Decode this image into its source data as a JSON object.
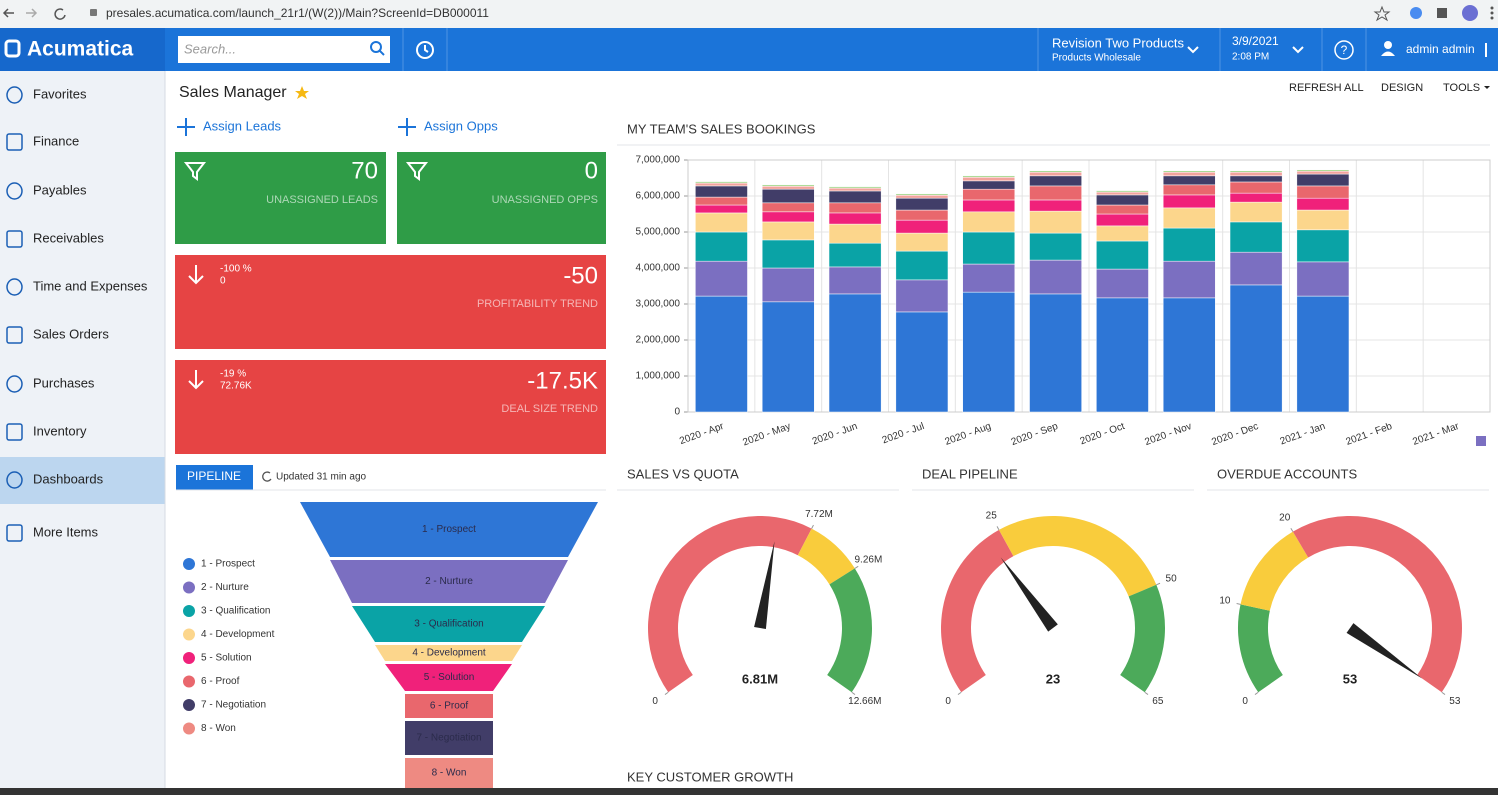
{
  "browser": {
    "url": "presales.acumatica.com/launch_21r1/(W(2))/Main?ScreenId=DB000011"
  },
  "header": {
    "logo": "Acumatica",
    "search_placeholder": "Search...",
    "company": "Revision Two Products",
    "branch": "Products Wholesale",
    "date": "3/9/2021",
    "time": "2:08 PM",
    "help": "?",
    "user": "admin admin"
  },
  "sidebar": {
    "items": [
      "Favorites",
      "Finance",
      "Payables",
      "Receivables",
      "Time and Expenses",
      "Sales Orders",
      "Purchases",
      "Inventory",
      "Dashboards",
      "More Items"
    ],
    "selected": 8
  },
  "page": {
    "title": "Sales Manager",
    "actions": [
      "REFRESH ALL",
      "DESIGN",
      "TOOLS"
    ]
  },
  "quick_actions": [
    "Assign Leads",
    "Assign Opps"
  ],
  "tiles": [
    {
      "value": 70,
      "label": "UNASSIGNED LEADS",
      "color": "#2f9c47"
    },
    {
      "value": 0,
      "label": "UNASSIGNED OPPS",
      "color": "#2f9c47"
    },
    {
      "percent": "-100 %",
      "sub": 0,
      "value": -50,
      "label": "PROFITABILITY TREND",
      "color": "#e64444"
    },
    {
      "percent": "-19 %",
      "sub": "72.76K",
      "value": "-17.5K",
      "label": "DEAL SIZE TREND",
      "color": "#e64444"
    }
  ],
  "pipeline": {
    "tab": "PIPELINE",
    "updated": "Updated 31 min ago",
    "stages": [
      {
        "name": "1 - Prospect",
        "color": "#2e76d6"
      },
      {
        "name": "2 - Nurture",
        "color": "#7b6fc1"
      },
      {
        "name": "3 - Qualification",
        "color": "#0aa3a6"
      },
      {
        "name": "4 - Development",
        "color": "#fcd68c"
      },
      {
        "name": "5 - Solution",
        "color": "#f0217a"
      },
      {
        "name": "6 - Proof",
        "color": "#e9676d"
      },
      {
        "name": "7 - Negotiation",
        "color": "#413d68"
      },
      {
        "name": "8 - Won",
        "color": "#ee8a82"
      }
    ]
  },
  "chart_data": [
    {
      "type": "bar",
      "stacked": true,
      "grid": true,
      "title": "MY TEAM'S SALES BOOKINGS",
      "categories": [
        "2020 - Apr",
        "2020 - May",
        "2020 - Jun",
        "2020 - Jul",
        "2020 - Aug",
        "2020 - Sep",
        "2020 - Oct",
        "2020 - Nov",
        "2020 - Dec",
        "2021 - Jan",
        "2021 - Feb",
        "2021 - Mar"
      ],
      "ylim": [
        0,
        7000000
      ],
      "yticks": [
        0,
        {
          "value": 1000000,
          "label": "1,000,000"
        },
        {
          "value": 2000000,
          "label": "2,000,000"
        },
        {
          "value": 3000000,
          "label": "3,000,000"
        },
        {
          "value": 4000000,
          "label": "4,000,000"
        },
        {
          "value": 5000000,
          "label": "5,000,000"
        },
        {
          "value": 6000000,
          "label": "6,000,000"
        },
        {
          "value": 7000000,
          "label": "7,000,000"
        }
      ],
      "series": [
        {
          "color": "#2e76d6",
          "values": [
            3220000,
            3060000,
            3280000,
            2780000,
            3330000,
            3280000,
            3170000,
            3170000,
            3530000,
            3220000,
            null,
            null
          ]
        },
        {
          "color": "#7b6fc1",
          "values": [
            970000,
            940000,
            750000,
            890000,
            780000,
            940000,
            800000,
            1020000,
            910000,
            950000,
            null,
            null
          ]
        },
        {
          "color": "#0aa3a6",
          "values": [
            810000,
            780000,
            660000,
            800000,
            890000,
            750000,
            780000,
            920000,
            840000,
            890000,
            null,
            null
          ]
        },
        {
          "color": "#fcd68c",
          "values": [
            530000,
            500000,
            530000,
            500000,
            560000,
            610000,
            420000,
            560000,
            550000,
            550000,
            null,
            null
          ]
        },
        {
          "color": "#f0217a",
          "values": [
            220000,
            280000,
            310000,
            360000,
            330000,
            310000,
            330000,
            360000,
            250000,
            330000,
            null,
            null
          ]
        },
        {
          "color": "#e9676d",
          "values": [
            220000,
            250000,
            280000,
            280000,
            300000,
            390000,
            250000,
            280000,
            310000,
            340000,
            null,
            null
          ]
        },
        {
          "color": "#413d68",
          "values": [
            310000,
            380000,
            330000,
            330000,
            230000,
            280000,
            280000,
            250000,
            170000,
            330000,
            null,
            null
          ]
        },
        {
          "color": "#f3a39d",
          "values": [
            80000,
            80000,
            80000,
            80000,
            100000,
            100000,
            80000,
            100000,
            100000,
            80000,
            null,
            null
          ]
        },
        {
          "color": "#a6d88f",
          "values": [
            40000,
            40000,
            40000,
            40000,
            40000,
            40000,
            40000,
            40000,
            40000,
            40000,
            null,
            null
          ]
        }
      ]
    },
    {
      "type": "gauge",
      "title": "SALES VS QUOTA",
      "min": 0,
      "max": 12660000,
      "value": 6810000,
      "value_label": "6.81M",
      "ticks": [
        0,
        {
          "value": 7720000,
          "label": "7.72M"
        },
        {
          "value": 9260000,
          "label": "9.26M"
        },
        {
          "value": 12660000,
          "label": "12.66M"
        }
      ],
      "bands": [
        {
          "from": 0,
          "to": 7720000,
          "color": "#e9676d"
        },
        {
          "from": 7720000,
          "to": 9260000,
          "color": "#f9cc3c"
        },
        {
          "from": 9260000,
          "to": 12660000,
          "color": "#4caa5a"
        }
      ]
    },
    {
      "type": "gauge",
      "title": "DEAL PIPELINE",
      "min": 0,
      "max": 65,
      "value": 23,
      "ticks": [
        0,
        25,
        50,
        65
      ],
      "bands": [
        {
          "from": 0,
          "to": 25,
          "color": "#e9676d"
        },
        {
          "from": 25,
          "to": 50,
          "color": "#f9cc3c"
        },
        {
          "from": 50,
          "to": 65,
          "color": "#4caa5a"
        }
      ]
    },
    {
      "type": "gauge",
      "title": "OVERDUE ACCOUNTS",
      "min": 0,
      "max": 53,
      "value": 53,
      "ticks": [
        0,
        10,
        20,
        53
      ],
      "bands": [
        {
          "from": 0,
          "to": 10,
          "color": "#4caa5a"
        },
        {
          "from": 10,
          "to": 20,
          "color": "#f9cc3c"
        },
        {
          "from": 20,
          "to": 53,
          "color": "#e9676d"
        }
      ]
    }
  ],
  "next_section": "KEY CUSTOMER GROWTH"
}
